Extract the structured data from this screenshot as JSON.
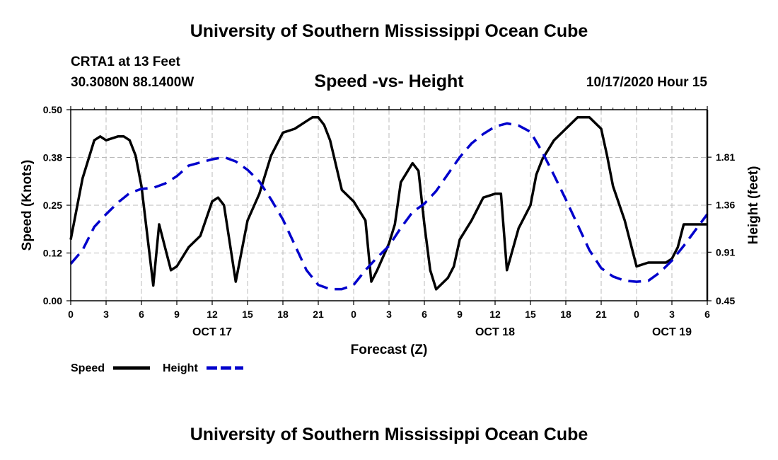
{
  "page": {
    "title": "University of Southern Mississippi Ocean Cube",
    "footer_title": "University of Southern Mississippi Ocean Cube",
    "station": "CRTA1 at 13 Feet",
    "coordinates": "30.3080N 88.1400W",
    "subtitle": "Speed -vs- Height",
    "datetime": "10/17/2020 Hour 15"
  },
  "chart_data": {
    "type": "line",
    "title": "Speed -vs- Height",
    "xlabel": "Forecast (Z)",
    "ylabel": "Speed (Knots)",
    "y2label": "Height (feet)",
    "x_hours_range": [
      0,
      54
    ],
    "ylim": [
      0,
      0.5
    ],
    "y2lim": [
      0.45,
      2.26
    ],
    "y_ticks": [
      "0.00",
      "0.12",
      "0.25",
      "0.38",
      "0.50"
    ],
    "y_tick_values": [
      0,
      0.125,
      0.25,
      0.375,
      0.5
    ],
    "y2_ticks": [
      "0.45",
      "0.91",
      "1.36",
      "1.81"
    ],
    "y2_tick_values": [
      0.45,
      0.91,
      1.36,
      1.81
    ],
    "x_ticks": [
      "0",
      "3",
      "6",
      "9",
      "12",
      "15",
      "18",
      "21",
      "0",
      "3",
      "6",
      "9",
      "12",
      "15",
      "18",
      "21",
      "0",
      "3",
      "6"
    ],
    "x_tick_hours": [
      0,
      3,
      6,
      9,
      12,
      15,
      18,
      21,
      24,
      27,
      30,
      33,
      36,
      39,
      42,
      45,
      48,
      51,
      54
    ],
    "day_labels": [
      {
        "label": "OCT 17",
        "hour": 12
      },
      {
        "label": "OCT 18",
        "hour": 36
      },
      {
        "label": "OCT 19",
        "hour": 51
      }
    ],
    "grid": true,
    "legend_position": "bottom-left",
    "series": [
      {
        "name": "Speed",
        "axis": "left",
        "color": "#000000",
        "dash": "solid",
        "x": [
          0,
          1,
          2,
          2.5,
          3,
          4,
          4.5,
          5,
          5.5,
          6,
          7,
          7.5,
          8,
          8.5,
          9,
          10,
          11,
          12,
          12.5,
          13,
          14,
          15,
          16,
          17,
          18,
          19,
          20,
          20.5,
          21,
          21.5,
          22,
          23,
          24,
          25,
          25.5,
          26,
          27,
          27.5,
          28,
          29,
          29.5,
          30,
          30.5,
          31,
          32,
          32.5,
          33,
          34,
          35,
          36,
          36.5,
          37,
          38,
          38.5,
          39,
          39.5,
          40,
          41,
          42,
          43,
          44,
          45,
          45.5,
          46,
          47,
          48,
          49,
          50,
          50.5,
          51,
          51.5,
          52,
          53,
          54
        ],
        "values": [
          0.16,
          0.32,
          0.42,
          0.43,
          0.42,
          0.43,
          0.43,
          0.42,
          0.38,
          0.3,
          0.04,
          0.2,
          0.14,
          0.08,
          0.09,
          0.14,
          0.17,
          0.26,
          0.27,
          0.25,
          0.05,
          0.21,
          0.28,
          0.38,
          0.44,
          0.45,
          0.47,
          0.48,
          0.48,
          0.46,
          0.42,
          0.29,
          0.26,
          0.21,
          0.05,
          0.08,
          0.15,
          0.2,
          0.31,
          0.36,
          0.34,
          0.2,
          0.08,
          0.03,
          0.06,
          0.09,
          0.16,
          0.21,
          0.27,
          0.28,
          0.28,
          0.08,
          0.19,
          0.22,
          0.25,
          0.33,
          0.37,
          0.42,
          0.45,
          0.48,
          0.48,
          0.45,
          0.38,
          0.3,
          0.21,
          0.09,
          0.1,
          0.1,
          0.1,
          0.11,
          0.14,
          0.2,
          0.2,
          0.2
        ]
      },
      {
        "name": "Height",
        "axis": "right",
        "color": "#0000cc",
        "dash": "dashed",
        "x": [
          0,
          1,
          2,
          3,
          4,
          5,
          6,
          7,
          8,
          9,
          10,
          11,
          12,
          13,
          14,
          15,
          16,
          17,
          18,
          19,
          20,
          21,
          22,
          23,
          24,
          25,
          26,
          27,
          28,
          29,
          30,
          31,
          32,
          33,
          34,
          35,
          36,
          37,
          38,
          39,
          40,
          41,
          42,
          43,
          44,
          45,
          46,
          47,
          48,
          49,
          50,
          51,
          52,
          53,
          54
        ],
        "values": [
          0.8,
          0.93,
          1.15,
          1.27,
          1.38,
          1.47,
          1.51,
          1.52,
          1.56,
          1.63,
          1.73,
          1.76,
          1.79,
          1.81,
          1.77,
          1.69,
          1.58,
          1.41,
          1.22,
          0.98,
          0.74,
          0.6,
          0.56,
          0.56,
          0.6,
          0.74,
          0.86,
          0.97,
          1.14,
          1.29,
          1.37,
          1.49,
          1.65,
          1.81,
          1.94,
          2.03,
          2.1,
          2.13,
          2.11,
          2.05,
          1.86,
          1.64,
          1.41,
          1.17,
          0.93,
          0.76,
          0.68,
          0.64,
          0.63,
          0.64,
          0.72,
          0.83,
          0.97,
          1.12,
          1.27
        ]
      }
    ]
  }
}
